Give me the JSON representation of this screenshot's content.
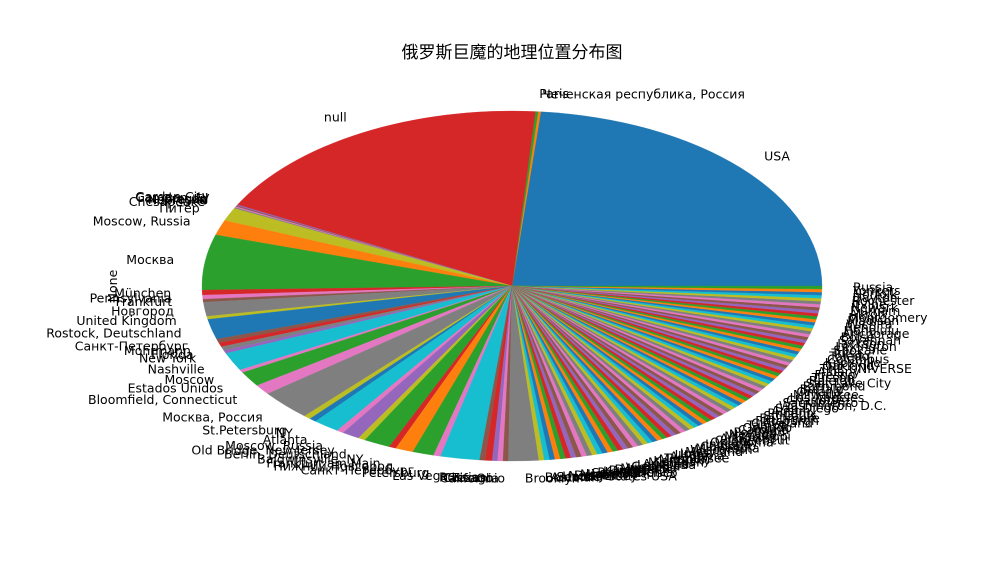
{
  "chart_data": {
    "type": "pie",
    "title": "俄罗斯巨魔的地理位置分布图",
    "ylabel": "None",
    "colors": [
      "#1f77b4",
      "#ff7f0e",
      "#2ca02c",
      "#d62728",
      "#9467bd",
      "#8c564b",
      "#e377c2",
      "#7f7f7f",
      "#bcbd22",
      "#17becf"
    ],
    "slices": [
      {
        "label": "USA",
        "value": 25.4,
        "color": "#1f77b4"
      },
      {
        "label": "Чеченская республика, Россия",
        "value": 0.15,
        "color": "#ff7f0e"
      },
      {
        "label": "Paris",
        "value": 0.15,
        "color": "#2ca02c"
      },
      {
        "label": "null",
        "value": 20.0,
        "color": "#d62728"
      },
      {
        "label": "Garden City",
        "value": 0.1,
        "color": "#9467bd"
      },
      {
        "label": "Camden, NJ",
        "value": 0.1,
        "color": "#8c564b"
      },
      {
        "label": "Oregon",
        "value": 0.1,
        "color": "#e377c2"
      },
      {
        "label": "Nebraska",
        "value": 0.1,
        "color": "#7f7f7f"
      },
      {
        "label": "Chesapeake",
        "value": 0.3,
        "color": "#bcbd22"
      },
      {
        "label": "Питер",
        "value": 1.0,
        "color": "#bcbd22"
      },
      {
        "label": "Moscow, Russia",
        "value": 1.5,
        "color": "#ff7f0e"
      },
      {
        "label": "Москва",
        "value": 5.5,
        "color": "#2ca02c"
      },
      {
        "label": "München",
        "value": 0.5,
        "color": "#d62728"
      },
      {
        "label": "Pennsylvania",
        "value": 0.4,
        "color": "#e377c2"
      },
      {
        "label": "Frankfurt",
        "value": 0.3,
        "color": "#8c564b"
      },
      {
        "label": "Новгород",
        "value": 1.4,
        "color": "#7f7f7f"
      },
      {
        "label": "United Kingdom",
        "value": 0.3,
        "color": "#bcbd22"
      },
      {
        "label": "Rostock, Deutschland",
        "value": 2.0,
        "color": "#1f77b4"
      },
      {
        "label": "Санкт-Петербург",
        "value": 0.4,
        "color": "#8c564b"
      },
      {
        "label": "Mohrmann",
        "value": 0.4,
        "color": "#d62728"
      },
      {
        "label": "Florida",
        "value": 0.4,
        "color": "#7f7f7f"
      },
      {
        "label": "New York",
        "value": 0.3,
        "color": "#9467bd"
      },
      {
        "label": "Nashville",
        "value": 1.8,
        "color": "#17becf"
      },
      {
        "label": "Moscow",
        "value": 0.3,
        "color": "#e377c2"
      },
      {
        "label": "Estados Unidos",
        "value": 1.5,
        "color": "#2ca02c"
      },
      {
        "label": "Bloomfield, Connecticut",
        "value": 1.0,
        "color": "#e377c2"
      },
      {
        "label": "Москва, Россия",
        "value": 3.0,
        "color": "#7f7f7f"
      },
      {
        "label": "St.Petersburg",
        "value": 0.4,
        "color": "#bcbd22"
      },
      {
        "label": "NY",
        "value": 0.4,
        "color": "#1f77b4"
      },
      {
        "label": "Atlanta",
        "value": 1.5,
        "color": "#17becf"
      },
      {
        "label": "Moscow, Russia",
        "value": 0.4,
        "color": "#e377c2"
      },
      {
        "label": "Old Bridge, New Jersey",
        "value": 1.0,
        "color": "#9467bd"
      },
      {
        "label": "Berlin, Deutschland",
        "value": 0.4,
        "color": "#bcbd22"
      },
      {
        "label": "Baldwinsville, NY",
        "value": 1.5,
        "color": "#2ca02c"
      },
      {
        "label": "Frankfurt am Main",
        "value": 0.4,
        "color": "#d62728"
      },
      {
        "label": "Нижний Новгород",
        "value": 1.0,
        "color": "#ff7f0e"
      },
      {
        "label": "Санкт-Петербург",
        "value": 1.2,
        "color": "#2ca02c"
      },
      {
        "label": "Petersburg",
        "value": 0.4,
        "color": "#e377c2"
      },
      {
        "label": "Las Vegas",
        "value": 2.2,
        "color": "#17becf"
      },
      {
        "label": "Russia",
        "value": 0.3,
        "color": "#8c564b"
      },
      {
        "label": "Texas",
        "value": 0.4,
        "color": "#d62728"
      },
      {
        "label": "Chicago",
        "value": 0.3,
        "color": "#9467bd"
      },
      {
        "label": "California",
        "value": 0.3,
        "color": "#e377c2"
      },
      {
        "label": "Ohio",
        "value": 0.3,
        "color": "#8c564b"
      },
      {
        "label": "Brooklyn",
        "value": 1.7,
        "color": "#7f7f7f"
      },
      {
        "label": "Boston",
        "value": 0.3,
        "color": "#bcbd22"
      },
      {
        "label": "Amman",
        "value": 0.3,
        "color": "#17becf"
      },
      {
        "label": "Seattle",
        "value": 0.3,
        "color": "#1f77b4"
      },
      {
        "label": "United States USA",
        "value": 0.3,
        "color": "#ff7f0e"
      },
      {
        "label": "New Jersey",
        "value": 0.3,
        "color": "#2ca02c"
      },
      {
        "label": "Detroit",
        "value": 0.3,
        "color": "#d62728"
      },
      {
        "label": "Miami",
        "value": 0.3,
        "color": "#9467bd"
      },
      {
        "label": "Houston",
        "value": 0.3,
        "color": "#8c564b"
      },
      {
        "label": "San Francisco",
        "value": 0.3,
        "color": "#e377c2"
      },
      {
        "label": "Philadelphia",
        "value": 0.3,
        "color": "#7f7f7f"
      },
      {
        "label": "Kansas",
        "value": 0.3,
        "color": "#bcbd22"
      },
      {
        "label": "Dallas",
        "value": 0.3,
        "color": "#17becf"
      },
      {
        "label": "Denver",
        "value": 0.3,
        "color": "#1f77b4"
      },
      {
        "label": "Memphis",
        "value": 0.3,
        "color": "#ff7f0e"
      },
      {
        "label": "Virginia",
        "value": 0.3,
        "color": "#2ca02c"
      },
      {
        "label": "Georgia",
        "value": 0.3,
        "color": "#d62728"
      },
      {
        "label": "Louisiana",
        "value": 0.3,
        "color": "#9467bd"
      },
      {
        "label": "Arizona",
        "value": 0.3,
        "color": "#8c564b"
      },
      {
        "label": "Michigan",
        "value": 0.3,
        "color": "#e377c2"
      },
      {
        "label": "Kentucky",
        "value": 0.3,
        "color": "#7f7f7f"
      },
      {
        "label": "Missouri",
        "value": 0.3,
        "color": "#bcbd22"
      },
      {
        "label": "Tennessee",
        "value": 0.3,
        "color": "#17becf"
      },
      {
        "label": "Alabama",
        "value": 0.3,
        "color": "#1f77b4"
      },
      {
        "label": "Utah",
        "value": 0.3,
        "color": "#ff7f0e"
      },
      {
        "label": "Iowa",
        "value": 0.3,
        "color": "#2ca02c"
      },
      {
        "label": "Maryland",
        "value": 0.3,
        "color": "#d62728"
      },
      {
        "label": "Wisconsin",
        "value": 0.3,
        "color": "#9467bd"
      },
      {
        "label": "Minnesota",
        "value": 0.3,
        "color": "#8c564b"
      },
      {
        "label": "Colorado",
        "value": 0.3,
        "color": "#e377c2"
      },
      {
        "label": "Indiana",
        "value": 0.3,
        "color": "#7f7f7f"
      },
      {
        "label": "Oklahoma",
        "value": 0.3,
        "color": "#bcbd22"
      },
      {
        "label": "Connecticut",
        "value": 0.3,
        "color": "#17becf"
      },
      {
        "label": "Arkansas",
        "value": 0.3,
        "color": "#1f77b4"
      },
      {
        "label": "Mississippi",
        "value": 0.3,
        "color": "#ff7f0e"
      },
      {
        "label": "Nevada",
        "value": 0.3,
        "color": "#2ca02c"
      },
      {
        "label": "Portland",
        "value": 0.3,
        "color": "#d62728"
      },
      {
        "label": "Carolina",
        "value": 0.3,
        "color": "#9467bd"
      },
      {
        "label": "Orlando",
        "value": 0.3,
        "color": "#8c564b"
      },
      {
        "label": "Tampa",
        "value": 0.3,
        "color": "#e377c2"
      },
      {
        "label": "Cleveland",
        "value": 0.3,
        "color": "#7f7f7f"
      },
      {
        "label": "Pittsburgh",
        "value": 0.3,
        "color": "#bcbd22"
      },
      {
        "label": "Baltimore",
        "value": 0.3,
        "color": "#17becf"
      },
      {
        "label": "St. Louis",
        "value": 0.3,
        "color": "#1f77b4"
      },
      {
        "label": "Phoenix",
        "value": 0.3,
        "color": "#ff7f0e"
      },
      {
        "label": "Austin",
        "value": 0.3,
        "color": "#2ca02c"
      },
      {
        "label": "San Diego",
        "value": 0.3,
        "color": "#d62728"
      },
      {
        "label": "Washington, D.C.",
        "value": 0.3,
        "color": "#9467bd"
      },
      {
        "label": "Sacramento",
        "value": 0.3,
        "color": "#8c564b"
      },
      {
        "label": "Charlotte",
        "value": 0.3,
        "color": "#e377c2"
      },
      {
        "label": "Los Angeles",
        "value": 0.3,
        "color": "#7f7f7f"
      },
      {
        "label": "Milwaukee",
        "value": 0.3,
        "color": "#bcbd22"
      },
      {
        "label": "Omaha",
        "value": 0.3,
        "color": "#17becf"
      },
      {
        "label": "Buffalo",
        "value": 0.3,
        "color": "#1f77b4"
      },
      {
        "label": "Richmond",
        "value": 0.3,
        "color": "#ff7f0e"
      },
      {
        "label": "Salt Lake City",
        "value": 0.3,
        "color": "#2ca02c"
      },
      {
        "label": "Raleigh",
        "value": 0.3,
        "color": "#d62728"
      },
      {
        "label": "Tucson",
        "value": 0.3,
        "color": "#9467bd"
      },
      {
        "label": "Fresno",
        "value": 0.3,
        "color": "#8c564b"
      },
      {
        "label": "Albany",
        "value": 0.3,
        "color": "#e377c2"
      },
      {
        "label": "THE UNIVERSE",
        "value": 0.3,
        "color": "#7f7f7f"
      },
      {
        "label": "Oakland",
        "value": 0.3,
        "color": "#bcbd22"
      },
      {
        "label": "Knoxville",
        "value": 0.3,
        "color": "#17becf"
      },
      {
        "label": "Columbus",
        "value": 0.3,
        "color": "#1f77b4"
      },
      {
        "label": "Toledo",
        "value": 0.3,
        "color": "#ff7f0e"
      },
      {
        "label": "Tulsa",
        "value": 0.3,
        "color": "#2ca02c"
      },
      {
        "label": "Spokane",
        "value": 0.3,
        "color": "#d62728"
      },
      {
        "label": "Lexington",
        "value": 0.3,
        "color": "#9467bd"
      },
      {
        "label": "Jackson",
        "value": 0.3,
        "color": "#8c564b"
      },
      {
        "label": "Savannah",
        "value": 0.3,
        "color": "#e377c2"
      },
      {
        "label": "Boise",
        "value": 0.3,
        "color": "#7f7f7f"
      },
      {
        "label": "Anchorage",
        "value": 0.3,
        "color": "#bcbd22"
      },
      {
        "label": "Honolulu",
        "value": 0.3,
        "color": "#17becf"
      },
      {
        "label": "Reno",
        "value": 0.3,
        "color": "#1f77b4"
      },
      {
        "label": "Wichita",
        "value": 0.3,
        "color": "#ff7f0e"
      },
      {
        "label": "Madison",
        "value": 0.3,
        "color": "#2ca02c"
      },
      {
        "label": "Montgomery",
        "value": 0.3,
        "color": "#d62728"
      },
      {
        "label": "Akron",
        "value": 0.3,
        "color": "#9467bd"
      },
      {
        "label": "Durham",
        "value": 0.3,
        "color": "#8c564b"
      },
      {
        "label": "Newark",
        "value": 0.3,
        "color": "#e377c2"
      },
      {
        "label": "Irvine",
        "value": 0.3,
        "color": "#7f7f7f"
      },
      {
        "label": "Rochester",
        "value": 0.3,
        "color": "#bcbd22"
      },
      {
        "label": "Dayton",
        "value": 0.3,
        "color": "#17becf"
      },
      {
        "label": "Norfolk",
        "value": 0.3,
        "color": "#1f77b4"
      },
      {
        "label": "Yonkers",
        "value": 0.3,
        "color": "#ff7f0e"
      },
      {
        "label": "Russia",
        "value": 0.3,
        "color": "#2ca02c"
      }
    ]
  }
}
